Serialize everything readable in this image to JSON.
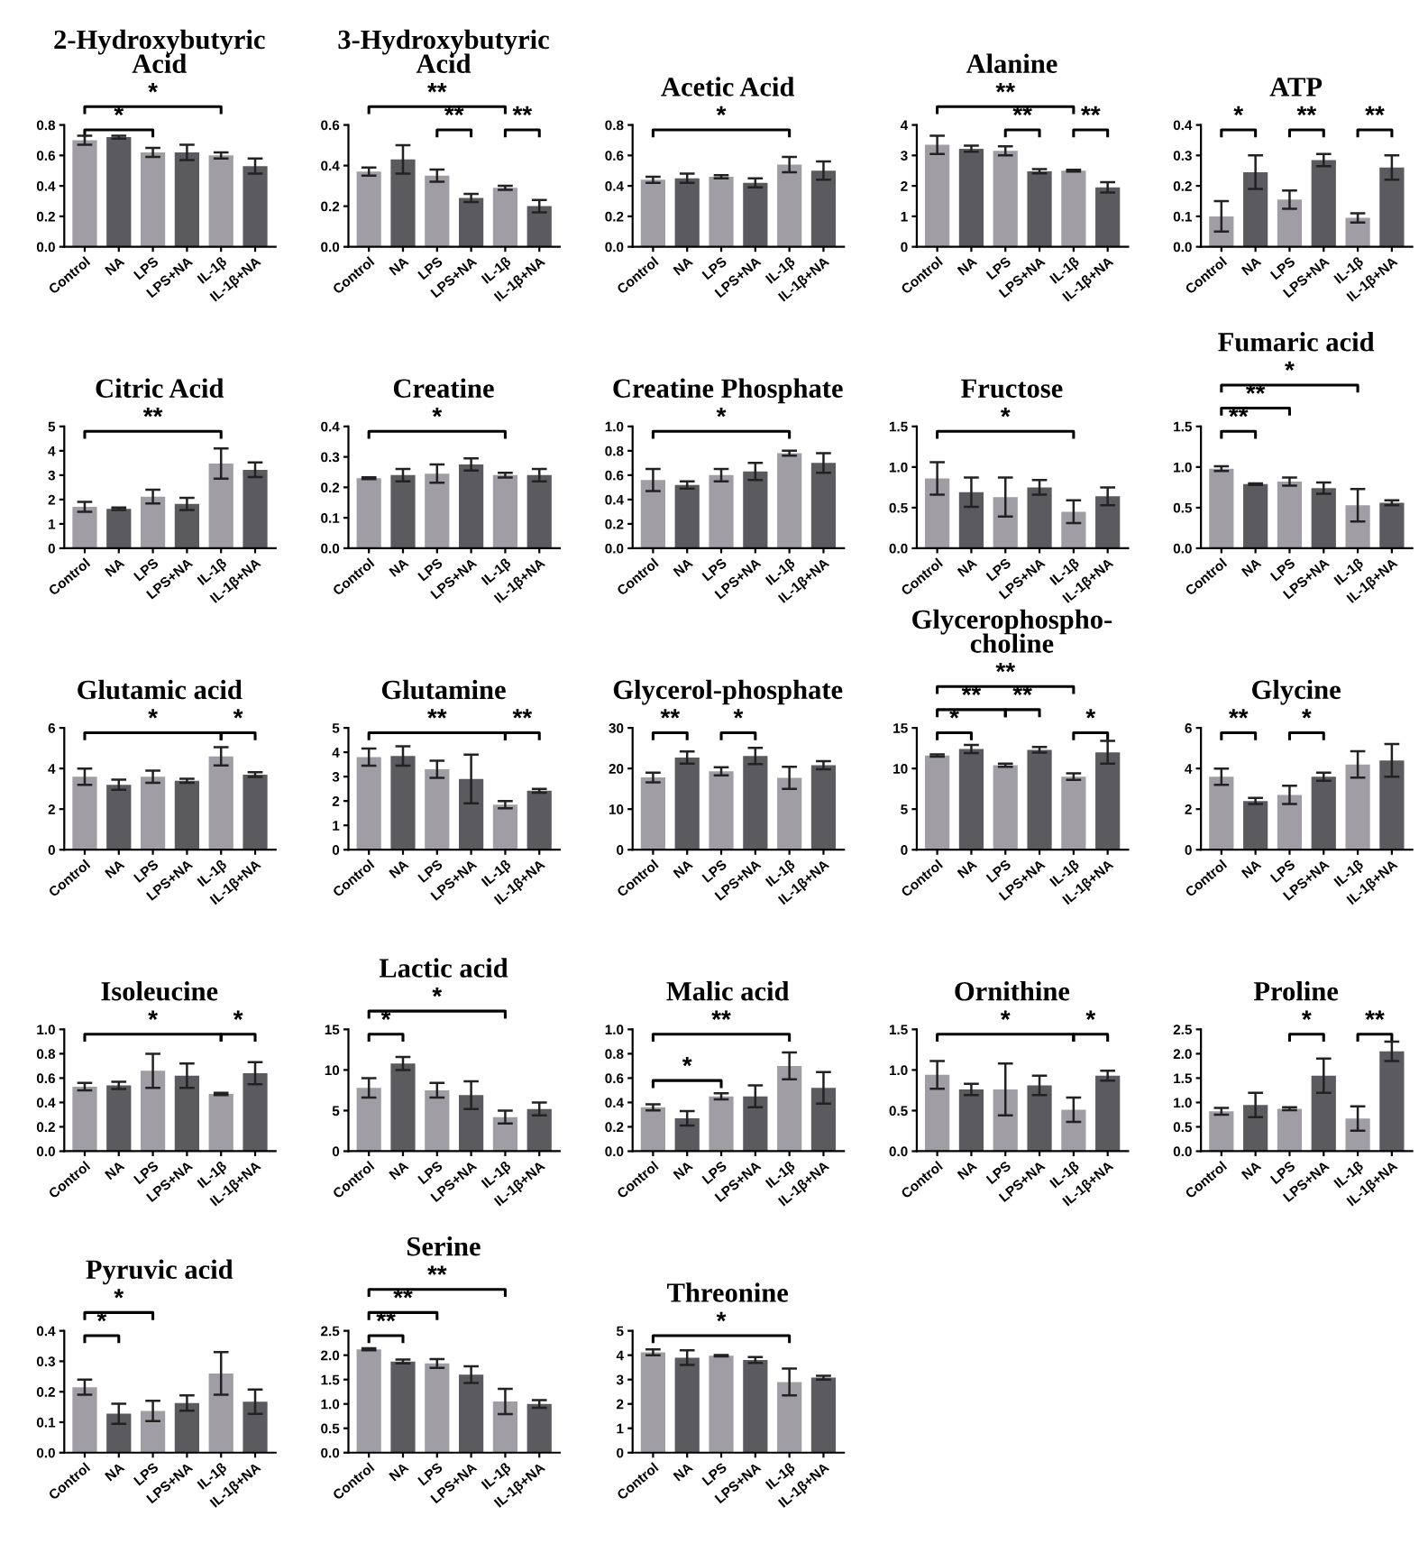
{
  "chart_data": [
    {
      "type": "bar",
      "title": "2-Hydroxybutyric\nAcid",
      "categories": [
        "Control",
        "NA",
        "LPS",
        "LPS+NA",
        "IL-1β",
        "IL-1β+NA"
      ],
      "values": [
        0.7,
        0.72,
        0.62,
        0.62,
        0.6,
        0.53
      ],
      "errors": [
        0.03,
        0.01,
        0.03,
        0.05,
        0.02,
        0.05
      ],
      "colors": [
        "#a19da4",
        "#5b5a5f",
        "#a19da4",
        "#5b5a5f",
        "#a19da4",
        "#5b5a5f"
      ],
      "ylim": [
        0,
        0.8
      ],
      "yticks": [
        {
          "value": 0,
          "label": "0.0"
        },
        0.2,
        0.4,
        0.6,
        0.8
      ],
      "annotations": [
        "*",
        "*"
      ]
    },
    {
      "type": "bar",
      "title": "3-Hydroxybutyric\nAcid",
      "categories": [
        "Control",
        "NA",
        "LPS",
        "LPS+NA",
        "IL-1β",
        "IL-1β+NA"
      ],
      "values": [
        0.37,
        0.43,
        0.35,
        0.24,
        0.29,
        0.2
      ],
      "errors": [
        0.02,
        0.07,
        0.03,
        0.02,
        0.01,
        0.03
      ],
      "colors": [
        "#a19da4",
        "#5b5a5f",
        "#a19da4",
        "#5b5a5f",
        "#a19da4",
        "#5b5a5f"
      ],
      "ylim": [
        0,
        0.6
      ],
      "yticks": [
        {
          "value": 0,
          "label": "0.0"
        },
        0.2,
        0.4,
        0.6
      ],
      "annotations": [
        "**",
        "**",
        "**"
      ]
    },
    {
      "type": "bar",
      "title": "Acetic Acid",
      "categories": [
        "Control",
        "NA",
        "LPS",
        "LPS+NA",
        "IL-1β",
        "IL-1β+NA"
      ],
      "values": [
        0.44,
        0.45,
        0.46,
        0.42,
        0.54,
        0.5
      ],
      "errors": [
        0.02,
        0.03,
        0.01,
        0.03,
        0.05,
        0.06
      ],
      "colors": [
        "#a19da4",
        "#5b5a5f",
        "#a19da4",
        "#5b5a5f",
        "#a19da4",
        "#5b5a5f"
      ],
      "ylim": [
        0,
        0.8
      ],
      "yticks": [
        {
          "value": 0,
          "label": "0.0"
        },
        0.2,
        0.4,
        0.6,
        0.8
      ],
      "annotations": [
        "*"
      ]
    },
    {
      "type": "bar",
      "title": "Alanine",
      "categories": [
        "Control",
        "NA",
        "LPS",
        "LPS+NA",
        "IL-1β",
        "IL-1β+NA"
      ],
      "values": [
        3.35,
        3.22,
        3.15,
        2.48,
        2.5,
        1.95
      ],
      "errors": [
        0.3,
        0.1,
        0.15,
        0.07,
        0.03,
        0.17
      ],
      "colors": [
        "#a19da4",
        "#5b5a5f",
        "#a19da4",
        "#5b5a5f",
        "#a19da4",
        "#5b5a5f"
      ],
      "ylim": [
        0,
        4
      ],
      "yticks": [
        0,
        1,
        2,
        3,
        4
      ],
      "annotations": [
        "**",
        "**",
        "**"
      ]
    },
    {
      "type": "bar",
      "title": "ATP",
      "categories": [
        "Control",
        "NA",
        "LPS",
        "LPS+NA",
        "IL-1β",
        "IL-1β+NA"
      ],
      "values": [
        0.1,
        0.245,
        0.155,
        0.285,
        0.095,
        0.26
      ],
      "errors": [
        0.05,
        0.055,
        0.03,
        0.02,
        0.015,
        0.04
      ],
      "colors": [
        "#a19da4",
        "#5b5a5f",
        "#a19da4",
        "#5b5a5f",
        "#a19da4",
        "#5b5a5f"
      ],
      "ylim": [
        0,
        0.4
      ],
      "yticks": [
        {
          "value": 0,
          "label": "0.0"
        },
        0.1,
        0.2,
        0.3,
        0.4
      ],
      "annotations": [
        "*",
        "**",
        "**"
      ]
    },
    {
      "type": "bar",
      "title": "Citric Acid",
      "categories": [
        "Control",
        "NA",
        "LPS",
        "LPS+NA",
        "IL-1β",
        "IL-1β+NA"
      ],
      "values": [
        1.7,
        1.62,
        2.12,
        1.82,
        3.48,
        3.22
      ],
      "errors": [
        0.2,
        0.05,
        0.28,
        0.25,
        0.62,
        0.3
      ],
      "colors": [
        "#a19da4",
        "#5b5a5f",
        "#a19da4",
        "#5b5a5f",
        "#a19da4",
        "#5b5a5f"
      ],
      "ylim": [
        0,
        5
      ],
      "yticks": [
        0,
        1,
        2,
        3,
        4,
        5
      ],
      "annotations": [
        "**"
      ]
    },
    {
      "type": "bar",
      "title": "Creatine",
      "categories": [
        "Control",
        "NA",
        "LPS",
        "LPS+NA",
        "IL-1β",
        "IL-1β+NA"
      ],
      "values": [
        0.23,
        0.24,
        0.245,
        0.275,
        0.24,
        0.24
      ],
      "errors": [
        0.003,
        0.02,
        0.03,
        0.02,
        0.008,
        0.02
      ],
      "colors": [
        "#a19da4",
        "#5b5a5f",
        "#a19da4",
        "#5b5a5f",
        "#a19da4",
        "#5b5a5f"
      ],
      "ylim": [
        0,
        0.4
      ],
      "yticks": [
        {
          "value": 0,
          "label": "0.0"
        },
        0.1,
        0.2,
        0.3,
        0.4
      ],
      "annotations": [
        "*"
      ]
    },
    {
      "type": "bar",
      "title": "Creatine Phosphate",
      "categories": [
        "Control",
        "NA",
        "LPS",
        "LPS+NA",
        "IL-1β",
        "IL-1β+NA"
      ],
      "values": [
        0.56,
        0.52,
        0.6,
        0.63,
        0.78,
        0.7
      ],
      "errors": [
        0.09,
        0.03,
        0.05,
        0.07,
        0.02,
        0.08
      ],
      "colors": [
        "#a19da4",
        "#5b5a5f",
        "#a19da4",
        "#5b5a5f",
        "#a19da4",
        "#5b5a5f"
      ],
      "ylim": [
        0,
        1.0
      ],
      "yticks": [
        {
          "value": 0,
          "label": "0.0"
        },
        0.2,
        0.4,
        0.6,
        0.8,
        {
          "value": 1.0,
          "label": "1.0"
        }
      ],
      "annotations": [
        "*"
      ]
    },
    {
      "type": "bar",
      "title": "Fructose",
      "categories": [
        "Control",
        "NA",
        "LPS",
        "LPS+NA",
        "IL-1β",
        "IL-1β+NA"
      ],
      "values": [
        0.86,
        0.69,
        0.63,
        0.75,
        0.45,
        0.64
      ],
      "errors": [
        0.2,
        0.18,
        0.24,
        0.09,
        0.14,
        0.11
      ],
      "colors": [
        "#a19da4",
        "#5b5a5f",
        "#a19da4",
        "#5b5a5f",
        "#a19da4",
        "#5b5a5f"
      ],
      "ylim": [
        0,
        1.5
      ],
      "yticks": [
        {
          "value": 0,
          "label": "0.0"
        },
        0.5,
        {
          "value": 1.0,
          "label": "1.0"
        },
        1.5
      ],
      "annotations": [
        "*"
      ]
    },
    {
      "type": "bar",
      "title": "Fumaric acid",
      "categories": [
        "Control",
        "NA",
        "LPS",
        "LPS+NA",
        "IL-1β",
        "IL-1β+NA"
      ],
      "values": [
        0.98,
        0.79,
        0.82,
        0.74,
        0.53,
        0.56
      ],
      "errors": [
        0.03,
        0.01,
        0.05,
        0.07,
        0.2,
        0.03
      ],
      "colors": [
        "#a19da4",
        "#5b5a5f",
        "#a19da4",
        "#5b5a5f",
        "#a19da4",
        "#5b5a5f"
      ],
      "ylim": [
        0,
        1.5
      ],
      "yticks": [
        {
          "value": 0,
          "label": "0.0"
        },
        0.5,
        {
          "value": 1.0,
          "label": "1.0"
        },
        1.5
      ],
      "annotations": [
        "**",
        "**",
        "*"
      ]
    },
    {
      "type": "bar",
      "title": "Glutamic acid",
      "categories": [
        "Control",
        "NA",
        "LPS",
        "LPS+NA",
        "IL-1β",
        "IL-1β+NA"
      ],
      "values": [
        3.6,
        3.2,
        3.6,
        3.4,
        4.6,
        3.7
      ],
      "errors": [
        0.4,
        0.25,
        0.3,
        0.1,
        0.45,
        0.12
      ],
      "colors": [
        "#a19da4",
        "#5b5a5f",
        "#a19da4",
        "#5b5a5f",
        "#a19da4",
        "#5b5a5f"
      ],
      "ylim": [
        0,
        6
      ],
      "yticks": [
        0,
        2,
        4,
        6
      ],
      "annotations": [
        "*",
        "*"
      ]
    },
    {
      "type": "bar",
      "title": "Glutamine",
      "categories": [
        "Control",
        "NA",
        "LPS",
        "LPS+NA",
        "IL-1β",
        "IL-1β+NA"
      ],
      "values": [
        3.8,
        3.85,
        3.3,
        2.9,
        1.85,
        2.42
      ],
      "errors": [
        0.35,
        0.4,
        0.35,
        1.0,
        0.15,
        0.08
      ],
      "colors": [
        "#a19da4",
        "#5b5a5f",
        "#a19da4",
        "#5b5a5f",
        "#a19da4",
        "#5b5a5f"
      ],
      "ylim": [
        0,
        5
      ],
      "yticks": [
        0,
        1,
        2,
        3,
        4,
        5
      ],
      "annotations": [
        "**",
        "**"
      ]
    },
    {
      "type": "bar",
      "title": "Glycerol-phosphate",
      "categories": [
        "Control",
        "NA",
        "LPS",
        "LPS+NA",
        "IL-1β",
        "IL-1β+NA"
      ],
      "values": [
        17.8,
        22.7,
        19.3,
        23.1,
        17.7,
        20.8
      ],
      "errors": [
        1.2,
        1.5,
        1.0,
        2.0,
        2.7,
        1.0
      ],
      "colors": [
        "#a19da4",
        "#5b5a5f",
        "#a19da4",
        "#5b5a5f",
        "#a19da4",
        "#5b5a5f"
      ],
      "ylim": [
        0,
        30
      ],
      "yticks": [
        0,
        10,
        20,
        30
      ],
      "annotations": [
        "**",
        "*"
      ]
    },
    {
      "type": "bar",
      "title": "Glycerophospho-\ncholine",
      "categories": [
        "Control",
        "NA",
        "LPS",
        "LPS+NA",
        "IL-1β",
        "IL-1β+NA"
      ],
      "values": [
        11.6,
        12.4,
        10.4,
        12.3,
        9.0,
        12.0
      ],
      "errors": [
        0.15,
        0.5,
        0.2,
        0.35,
        0.4,
        1.4
      ],
      "colors": [
        "#a19da4",
        "#5b5a5f",
        "#a19da4",
        "#5b5a5f",
        "#a19da4",
        "#5b5a5f"
      ],
      "ylim": [
        0,
        15
      ],
      "yticks": [
        0,
        5,
        10,
        15
      ],
      "annotations": [
        "*",
        "**",
        "**",
        "**",
        "*"
      ]
    },
    {
      "type": "bar",
      "title": "Glycine",
      "categories": [
        "Control",
        "NA",
        "LPS",
        "LPS+NA",
        "IL-1β",
        "IL-1β+NA"
      ],
      "values": [
        3.6,
        2.4,
        2.7,
        3.6,
        4.2,
        4.4
      ],
      "errors": [
        0.4,
        0.15,
        0.45,
        0.2,
        0.65,
        0.8
      ],
      "colors": [
        "#a19da4",
        "#5b5a5f",
        "#a19da4",
        "#5b5a5f",
        "#a19da4",
        "#5b5a5f"
      ],
      "ylim": [
        0,
        6
      ],
      "yticks": [
        0,
        2,
        4,
        6
      ],
      "annotations": [
        "**",
        "*"
      ]
    },
    {
      "type": "bar",
      "title": "Isoleucine",
      "categories": [
        "Control",
        "NA",
        "LPS",
        "LPS+NA",
        "IL-1β",
        "IL-1β+NA"
      ],
      "values": [
        0.53,
        0.54,
        0.66,
        0.62,
        0.47,
        0.64
      ],
      "errors": [
        0.03,
        0.03,
        0.14,
        0.1,
        0.01,
        0.09
      ],
      "colors": [
        "#a19da4",
        "#5b5a5f",
        "#a19da4",
        "#5b5a5f",
        "#a19da4",
        "#5b5a5f"
      ],
      "ylim": [
        0,
        1.0
      ],
      "yticks": [
        {
          "value": 0,
          "label": "0.0"
        },
        0.2,
        0.4,
        0.6,
        0.8,
        {
          "value": 1.0,
          "label": "1.0"
        }
      ],
      "annotations": [
        "*",
        "*"
      ]
    },
    {
      "type": "bar",
      "title": "Lactic acid",
      "categories": [
        "Control",
        "NA",
        "LPS",
        "LPS+NA",
        "IL-1β",
        "IL-1β+NA"
      ],
      "values": [
        7.8,
        10.8,
        7.5,
        6.9,
        4.2,
        5.2
      ],
      "errors": [
        1.2,
        0.8,
        0.9,
        1.7,
        0.8,
        0.8
      ],
      "colors": [
        "#a19da4",
        "#5b5a5f",
        "#a19da4",
        "#5b5a5f",
        "#a19da4",
        "#5b5a5f"
      ],
      "ylim": [
        0,
        15
      ],
      "yticks": [
        0,
        5,
        10,
        15
      ],
      "annotations": [
        "*",
        "*"
      ]
    },
    {
      "type": "bar",
      "title": "Malic acid",
      "categories": [
        "Control",
        "NA",
        "LPS",
        "LPS+NA",
        "IL-1β",
        "IL-1β+NA"
      ],
      "values": [
        0.36,
        0.27,
        0.45,
        0.45,
        0.7,
        0.52
      ],
      "errors": [
        0.025,
        0.06,
        0.025,
        0.09,
        0.11,
        0.13
      ],
      "colors": [
        "#a19da4",
        "#5b5a5f",
        "#a19da4",
        "#5b5a5f",
        "#a19da4",
        "#5b5a5f"
      ],
      "ylim": [
        0,
        1.0
      ],
      "yticks": [
        {
          "value": 0,
          "label": "0.0"
        },
        0.2,
        0.4,
        0.6,
        0.8,
        {
          "value": 1.0,
          "label": "1.0"
        }
      ],
      "annotations": [
        "*",
        "**"
      ]
    },
    {
      "type": "bar",
      "title": "Ornithine",
      "categories": [
        "Control",
        "NA",
        "LPS",
        "LPS+NA",
        "IL-1β",
        "IL-1β+NA"
      ],
      "values": [
        0.94,
        0.76,
        0.76,
        0.81,
        0.51,
        0.93
      ],
      "errors": [
        0.17,
        0.07,
        0.32,
        0.12,
        0.15,
        0.06
      ],
      "colors": [
        "#a19da4",
        "#5b5a5f",
        "#a19da4",
        "#5b5a5f",
        "#a19da4",
        "#5b5a5f"
      ],
      "ylim": [
        0,
        1.5
      ],
      "yticks": [
        {
          "value": 0,
          "label": "0.0"
        },
        0.5,
        {
          "value": 1.0,
          "label": "1.0"
        },
        1.5
      ],
      "annotations": [
        "*",
        "*"
      ]
    },
    {
      "type": "bar",
      "title": "Proline",
      "categories": [
        "Control",
        "NA",
        "LPS",
        "LPS+NA",
        "IL-1β",
        "IL-1β+NA"
      ],
      "values": [
        0.82,
        0.95,
        0.87,
        1.55,
        0.67,
        2.05
      ],
      "errors": [
        0.07,
        0.25,
        0.03,
        0.35,
        0.25,
        0.2
      ],
      "colors": [
        "#a19da4",
        "#5b5a5f",
        "#a19da4",
        "#5b5a5f",
        "#a19da4",
        "#5b5a5f"
      ],
      "ylim": [
        0,
        2.5
      ],
      "yticks": [
        {
          "value": 0,
          "label": "0.0"
        },
        0.5,
        {
          "value": 1.0,
          "label": "1.0"
        },
        1.5,
        {
          "value": 2.0,
          "label": "2.0"
        },
        2.5
      ],
      "annotations": [
        "*",
        "**"
      ]
    },
    {
      "type": "bar",
      "title": "Pyruvic acid",
      "categories": [
        "Control",
        "NA",
        "LPS",
        "LPS+NA",
        "IL-1β",
        "IL-1β+NA"
      ],
      "values": [
        0.215,
        0.128,
        0.137,
        0.163,
        0.26,
        0.167
      ],
      "errors": [
        0.025,
        0.033,
        0.033,
        0.025,
        0.07,
        0.04
      ],
      "colors": [
        "#a19da4",
        "#5b5a5f",
        "#a19da4",
        "#5b5a5f",
        "#a19da4",
        "#5b5a5f"
      ],
      "ylim": [
        0,
        0.4
      ],
      "yticks": [
        {
          "value": 0,
          "label": "0.0"
        },
        0.1,
        0.2,
        0.3,
        0.4
      ],
      "annotations": [
        "*",
        "*"
      ]
    },
    {
      "type": "bar",
      "title": "Serine",
      "categories": [
        "Control",
        "NA",
        "LPS",
        "LPS+NA",
        "IL-1β",
        "IL-1β+NA"
      ],
      "values": [
        2.12,
        1.87,
        1.83,
        1.6,
        1.05,
        1.0
      ],
      "errors": [
        0.02,
        0.04,
        0.09,
        0.17,
        0.26,
        0.08
      ],
      "colors": [
        "#a19da4",
        "#5b5a5f",
        "#a19da4",
        "#5b5a5f",
        "#a19da4",
        "#5b5a5f"
      ],
      "ylim": [
        0,
        2.5
      ],
      "yticks": [
        {
          "value": 0,
          "label": "0.0"
        },
        0.5,
        {
          "value": 1.0,
          "label": "1.0"
        },
        1.5,
        {
          "value": 2.0,
          "label": "2.0"
        },
        2.5
      ],
      "annotations": [
        "**",
        "**",
        "**"
      ]
    },
    {
      "type": "bar",
      "title": "Threonine",
      "categories": [
        "Control",
        "NA",
        "LPS",
        "LPS+NA",
        "IL-1β",
        "IL-1β+NA"
      ],
      "values": [
        4.12,
        3.9,
        3.98,
        3.8,
        2.9,
        3.08
      ],
      "errors": [
        0.12,
        0.3,
        0.03,
        0.12,
        0.55,
        0.08
      ],
      "colors": [
        "#a19da4",
        "#5b5a5f",
        "#a19da4",
        "#5b5a5f",
        "#a19da4",
        "#5b5a5f"
      ],
      "ylim": [
        0,
        5
      ],
      "yticks": [
        0,
        1,
        2,
        3,
        4,
        5
      ],
      "annotations": [
        "*"
      ]
    }
  ]
}
